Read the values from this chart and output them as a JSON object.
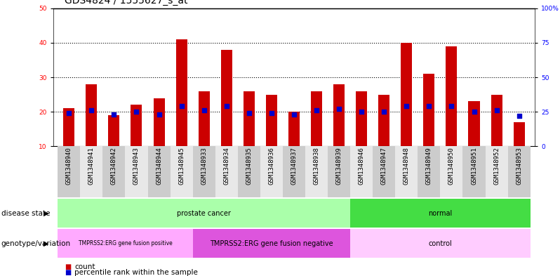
{
  "title": "GDS4824 / 1555627_s_at",
  "samples": [
    "GSM1348940",
    "GSM1348941",
    "GSM1348942",
    "GSM1348943",
    "GSM1348944",
    "GSM1348945",
    "GSM1348933",
    "GSM1348934",
    "GSM1348935",
    "GSM1348936",
    "GSM1348937",
    "GSM1348938",
    "GSM1348939",
    "GSM1348946",
    "GSM1348947",
    "GSM1348948",
    "GSM1348949",
    "GSM1348950",
    "GSM1348951",
    "GSM1348952",
    "GSM1348953"
  ],
  "count_values": [
    21,
    28,
    19,
    22,
    24,
    41,
    26,
    38,
    26,
    25,
    20,
    26,
    28,
    26,
    25,
    40,
    31,
    39,
    23,
    25,
    17
  ],
  "percentile_values": [
    24,
    26,
    23,
    25,
    23,
    29,
    26,
    29,
    24,
    24,
    23,
    26,
    27,
    25,
    25,
    29,
    29,
    29,
    25,
    26,
    22
  ],
  "ylim_left": [
    10,
    50
  ],
  "ylim_right": [
    0,
    100
  ],
  "yticks_left": [
    10,
    20,
    30,
    40,
    50
  ],
  "yticks_right": [
    0,
    25,
    50,
    75,
    100
  ],
  "ytick_labels_right": [
    "0",
    "25",
    "50",
    "75",
    "100%"
  ],
  "bar_color": "#cc0000",
  "dot_color": "#0000cc",
  "bar_width": 0.5,
  "dot_size": 18,
  "disease_state_groups": [
    {
      "label": "prostate cancer",
      "start": 0,
      "end": 13,
      "color": "#aaffaa"
    },
    {
      "label": "normal",
      "start": 13,
      "end": 21,
      "color": "#44dd44"
    }
  ],
  "genotype_groups": [
    {
      "label": "TMPRSS2:ERG gene fusion positive",
      "start": 0,
      "end": 6,
      "color": "#ffaaff"
    },
    {
      "label": "TMPRSS2:ERG gene fusion negative",
      "start": 6,
      "end": 13,
      "color": "#dd55dd"
    },
    {
      "label": "control",
      "start": 13,
      "end": 21,
      "color": "#ffccff"
    }
  ],
  "legend_count_color": "#cc0000",
  "legend_dot_color": "#0000cc",
  "legend_count_label": "count",
  "legend_dot_label": "percentile rank within the sample",
  "ds_label": "disease state",
  "gv_label": "genotype/variation",
  "title_fontsize": 10,
  "tick_fontsize": 6.5,
  "label_fontsize": 7.5,
  "annotation_fontsize": 7
}
